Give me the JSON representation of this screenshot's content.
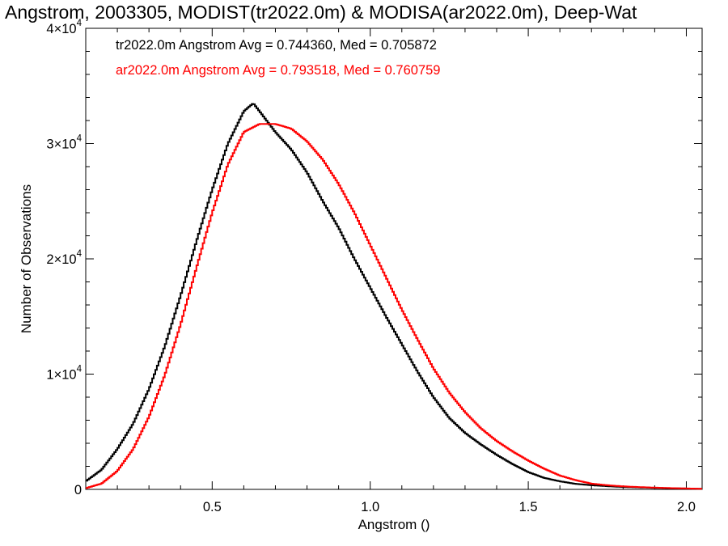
{
  "chart_data": {
    "type": "line",
    "title": "Angstrom, 2003305, MODIST(tr2022.0m) & MODISA(ar2022.0m), Deep-Wat",
    "xlabel": "Angstrom ()",
    "ylabel": "Number of Observations",
    "xlim": [
      0.1,
      2.05
    ],
    "ylim": [
      0,
      40000
    ],
    "x_ticks": [
      0.5,
      1.0,
      1.5,
      2.0
    ],
    "x_tick_labels": [
      "0.5",
      "1.0",
      "1.5",
      "2.0"
    ],
    "y_ticks": [
      {
        "value": 0,
        "mantissa": "0",
        "exp": ""
      },
      {
        "value": 10000,
        "mantissa": "1×10",
        "exp": "4"
      },
      {
        "value": 20000,
        "mantissa": "2×10",
        "exp": "4"
      },
      {
        "value": 30000,
        "mantissa": "3×10",
        "exp": "4"
      },
      {
        "value": 40000,
        "mantissa": "4×10",
        "exp": "4"
      }
    ],
    "grid": false,
    "legend_position": "top-left",
    "series": [
      {
        "name": "tr2022.0m Angstrom Avg = 0.744360, Med = 0.705872",
        "color": "#000000",
        "x": [
          0.1,
          0.15,
          0.2,
          0.25,
          0.3,
          0.35,
          0.4,
          0.45,
          0.5,
          0.55,
          0.6,
          0.63,
          0.65,
          0.7,
          0.75,
          0.8,
          0.85,
          0.9,
          0.95,
          1.0,
          1.05,
          1.1,
          1.15,
          1.2,
          1.25,
          1.3,
          1.35,
          1.4,
          1.45,
          1.5,
          1.55,
          1.6,
          1.65,
          1.7,
          1.75,
          1.8,
          1.85,
          1.9,
          1.95,
          2.0,
          2.05
        ],
        "y": [
          700,
          1700,
          3500,
          5700,
          8700,
          12400,
          16800,
          21500,
          26000,
          30000,
          32800,
          33500,
          32800,
          31000,
          29500,
          27500,
          25000,
          22700,
          20000,
          17500,
          15000,
          12600,
          10200,
          8000,
          6200,
          4900,
          3900,
          3000,
          2200,
          1500,
          1000,
          700,
          480,
          360,
          280,
          210,
          170,
          130,
          100,
          70,
          50
        ]
      },
      {
        "name": "ar2022.0m Angstrom Avg = 0.793518, Med = 0.760759",
        "color": "#ff0000",
        "x": [
          0.1,
          0.15,
          0.2,
          0.25,
          0.3,
          0.35,
          0.4,
          0.45,
          0.5,
          0.55,
          0.6,
          0.65,
          0.7,
          0.75,
          0.8,
          0.85,
          0.9,
          0.95,
          1.0,
          1.05,
          1.1,
          1.15,
          1.2,
          1.25,
          1.3,
          1.35,
          1.4,
          1.45,
          1.5,
          1.55,
          1.6,
          1.65,
          1.7,
          1.75,
          1.8,
          1.85,
          1.9,
          1.95,
          2.0,
          2.05
        ],
        "y": [
          100,
          500,
          1600,
          3500,
          6300,
          9900,
          14300,
          19200,
          24000,
          28200,
          31000,
          31700,
          31700,
          31300,
          30200,
          28600,
          26500,
          24000,
          21200,
          18400,
          15600,
          13000,
          10500,
          8400,
          6700,
          5300,
          4200,
          3300,
          2500,
          1800,
          1200,
          800,
          500,
          360,
          260,
          200,
          150,
          110,
          80,
          50
        ]
      }
    ]
  }
}
